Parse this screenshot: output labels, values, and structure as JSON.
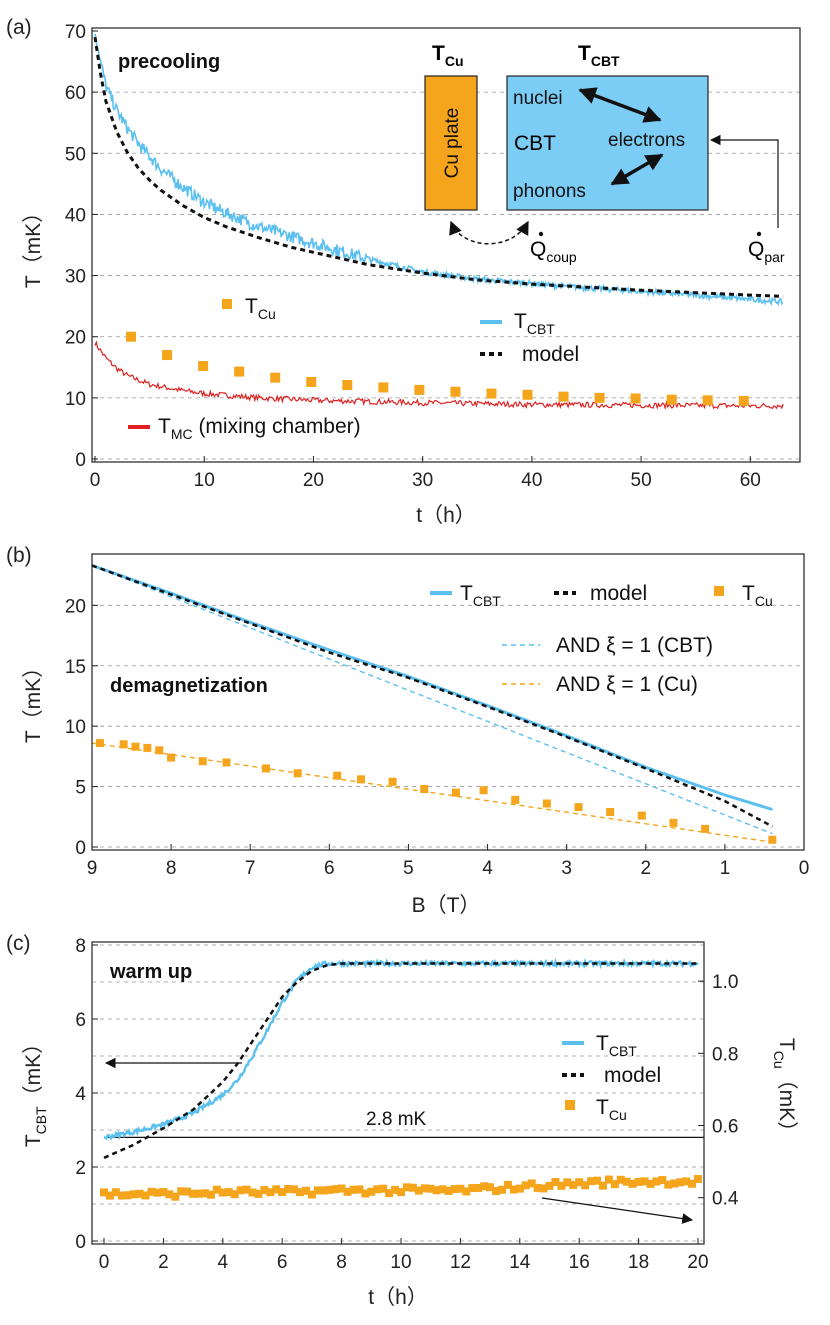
{
  "colors": {
    "cbt": "#5bc0f0",
    "model": "#111111",
    "cu": "#f5a51c",
    "mc": "#e02020",
    "grid": "#999999",
    "cbt_box": "#7ccdf5"
  },
  "panels": {
    "a": {
      "label": "(a)",
      "xlabel": "t（h）",
      "ylabel": "T（mK）",
      "annotation": "precooling",
      "xticks": [
        "0",
        "10",
        "20",
        "30",
        "40",
        "50",
        "60"
      ],
      "yticks": [
        "0",
        "10",
        "20",
        "30",
        "40",
        "50",
        "60",
        "70"
      ],
      "legend": {
        "tcu_main": "T",
        "tcu_sub": "Cu",
        "tcbt_main": "T",
        "tcbt_sub": "CBT",
        "model": "model",
        "tmc_main": "T",
        "tmc_sub": "MC",
        "tmc_rest": " (mixing chamber)"
      }
    },
    "b": {
      "label": "(b)",
      "xlabel": "B（T）",
      "ylabel": "T（mK）",
      "annotation": "demagnetization",
      "xticks": [
        "9",
        "8",
        "7",
        "6",
        "5",
        "4",
        "3",
        "2",
        "1",
        "0"
      ],
      "yticks": [
        "0",
        "5",
        "10",
        "15",
        "20"
      ],
      "legend": {
        "tcbt_main": "T",
        "tcbt_sub": "CBT",
        "model": "model",
        "tcu_main": "T",
        "tcu_sub": "Cu",
        "and_cbt": "AND ξ = 1 (CBT)",
        "and_cu": "AND ξ = 1 (Cu)"
      }
    },
    "c": {
      "label": "(c)",
      "xlabel": "t（h）",
      "ylabel_main": "T",
      "ylabel_sub": "CBT",
      "ylabel_rest": "（mK）",
      "ylabel2_main": "T",
      "ylabel2_sub": "Cu",
      "ylabel2_rest": "（mK）",
      "annotation": "warm up",
      "xticks": [
        "0",
        "2",
        "4",
        "6",
        "8",
        "10",
        "12",
        "14",
        "16",
        "18",
        "20"
      ],
      "yticks": [
        "0",
        "2",
        "4",
        "6",
        "8"
      ],
      "y2ticks": [
        "0.4",
        "0.6",
        "0.8",
        "1.0"
      ],
      "ref_label": "2.8 mK",
      "legend": {
        "tcbt_main": "T",
        "tcbt_sub": "CBT",
        "model": "model",
        "tcu_main": "T",
        "tcu_sub": "Cu"
      }
    }
  },
  "diagram": {
    "tcu_title_main": "T",
    "tcu_title_sub": "Cu",
    "tcbt_title_main": "T",
    "tcbt_title_sub": "CBT",
    "cu_plate": "Cu plate",
    "nuclei": "nuclei",
    "cbt": "CBT",
    "electrons": "electrons",
    "phonons": "phonons",
    "qcoup_main": "Q",
    "qcoup_sub": "coup",
    "qpar_main": "Q",
    "qpar_sub": "par"
  },
  "chart_data": [
    {
      "type": "line",
      "title": "",
      "xlabel": "t（h）",
      "ylabel": "T（mK）",
      "xlim": [
        0,
        64
      ],
      "ylim": [
        0,
        70
      ],
      "grid": "horizontal dashed",
      "series": [
        {
          "name": "T_CBT",
          "style": "noisy line",
          "x": [
            0,
            0.5,
            1,
            2,
            3,
            4,
            5,
            6,
            8,
            10,
            12,
            15,
            18,
            20,
            25,
            30,
            35,
            40,
            45,
            50,
            55,
            60,
            63
          ],
          "values": [
            70,
            65,
            61,
            57,
            54,
            51.5,
            49.5,
            47.5,
            44.5,
            42,
            40.2,
            38,
            36.4,
            35.3,
            32.7,
            30.6,
            29.4,
            28.7,
            28,
            27.4,
            26.8,
            26.1,
            25.7
          ]
        },
        {
          "name": "model",
          "style": "dashed",
          "x": [
            0,
            0.5,
            1,
            2,
            3,
            4,
            5,
            6,
            8,
            10,
            12,
            15,
            18,
            20,
            25,
            30,
            35,
            40,
            45,
            50,
            55,
            60,
            63
          ],
          "values": [
            69,
            63,
            58.5,
            53.5,
            50,
            47.5,
            45.6,
            44,
            41.5,
            39.5,
            38,
            36.2,
            34.6,
            33.8,
            31.8,
            30.4,
            29.3,
            28.6,
            28.1,
            27.6,
            27.2,
            26.8,
            26.6
          ]
        },
        {
          "name": "T_Cu",
          "style": "markers",
          "x": [
            3.3,
            6.6,
            9.9,
            13.2,
            16.5,
            19.8,
            23.1,
            26.4,
            29.7,
            33,
            36.3,
            39.6,
            42.9,
            46.2,
            49.5,
            52.8,
            56.1,
            59.4
          ],
          "values": [
            20,
            17,
            15.2,
            14.3,
            13.3,
            12.6,
            12.1,
            11.7,
            11.3,
            11,
            10.7,
            10.5,
            10.2,
            10,
            9.9,
            9.7,
            9.6,
            9.5
          ]
        },
        {
          "name": "T_MC",
          "style": "noisy line",
          "x": [
            0,
            1,
            2,
            3,
            5,
            8,
            10,
            15,
            20,
            30,
            40,
            50,
            60,
            63
          ],
          "values": [
            19,
            16.5,
            14.8,
            13.6,
            12.2,
            11.2,
            10.7,
            10,
            9.6,
            9.2,
            8.9,
            8.8,
            8.7,
            8.7
          ]
        }
      ]
    },
    {
      "type": "line",
      "title": "",
      "xlabel": "B（T）",
      "ylabel": "T（mK）",
      "xlim": [
        9,
        0
      ],
      "ylim": [
        0,
        24
      ],
      "grid": "horizontal dashed",
      "series": [
        {
          "name": "T_CBT",
          "x": [
            9,
            8,
            7,
            6,
            5,
            4,
            3,
            2,
            1,
            0.4
          ],
          "values": [
            23.3,
            21,
            18.6,
            16.3,
            14.1,
            11.7,
            9.2,
            6.6,
            4.3,
            3.1
          ]
        },
        {
          "name": "model",
          "x": [
            9,
            8,
            7,
            6,
            5,
            4,
            3,
            2,
            1,
            0.4
          ],
          "values": [
            23.3,
            20.9,
            18.5,
            16.1,
            14,
            11.6,
            9.1,
            6.5,
            3.8,
            1.7
          ]
        },
        {
          "name": "AND ξ = 1 (CBT)",
          "x": [
            9,
            0.4
          ],
          "values": [
            23.3,
            1.1
          ]
        },
        {
          "name": "AND ξ = 1 (Cu)",
          "x": [
            9,
            0.4
          ],
          "values": [
            8.6,
            0.4
          ]
        },
        {
          "name": "T_Cu",
          "x": [
            8.9,
            8.6,
            8.45,
            8.3,
            8.15,
            8,
            7.6,
            7.3,
            6.8,
            6.4,
            5.9,
            5.6,
            5.2,
            4.8,
            4.4,
            4.05,
            3.65,
            3.25,
            2.85,
            2.45,
            2.05,
            1.65,
            1.25,
            0.4
          ],
          "values": [
            8.6,
            8.5,
            8.3,
            8.2,
            8,
            7.4,
            7.1,
            7,
            6.5,
            6.1,
            5.9,
            5.6,
            5.4,
            4.8,
            4.5,
            4.7,
            3.9,
            3.6,
            3.3,
            2.9,
            2.6,
            2,
            1.5,
            0.6
          ]
        }
      ]
    },
    {
      "type": "line",
      "title": "",
      "xlabel": "t（h）",
      "ylabel": "T_CBT（mK）",
      "ylabel2": "T_Cu（mK）",
      "xlim": [
        0,
        20
      ],
      "ylim": [
        0,
        8
      ],
      "y2lim": [
        0.28,
        1.1
      ],
      "grid": "horizontal dashed",
      "reference_line": {
        "y": 2.8,
        "label": "2.8 mK"
      },
      "series": [
        {
          "name": "T_CBT",
          "axis": "left",
          "x": [
            0,
            1,
            2,
            3,
            4,
            4.5,
            5,
            5.5,
            6,
            6.5,
            7,
            7.5,
            8,
            9,
            10,
            12,
            14,
            16,
            18,
            20
          ],
          "values": [
            2.8,
            2.95,
            3.15,
            3.45,
            3.95,
            4.35,
            5,
            5.7,
            6.45,
            7.05,
            7.4,
            7.5,
            7.5,
            7.5,
            7.5,
            7.5,
            7.5,
            7.5,
            7.5,
            7.5
          ]
        },
        {
          "name": "model",
          "axis": "left",
          "x": [
            0,
            1,
            2,
            3,
            4,
            4.5,
            5,
            5.5,
            6,
            6.5,
            7,
            7.5,
            8,
            8.5,
            9,
            10,
            12,
            14,
            16,
            18,
            20
          ],
          "values": [
            2.25,
            2.6,
            3.05,
            3.55,
            4.3,
            4.8,
            5.4,
            6,
            6.6,
            7,
            7.3,
            7.45,
            7.5,
            7.5,
            7.5,
            7.5,
            7.5,
            7.5,
            7.5,
            7.5,
            7.5
          ]
        },
        {
          "name": "T_Cu",
          "axis": "right",
          "x": [
            0,
            2,
            4,
            6,
            8,
            10,
            12,
            14,
            16,
            18,
            20
          ],
          "values": [
            0.41,
            0.41,
            0.415,
            0.415,
            0.42,
            0.42,
            0.42,
            0.43,
            0.44,
            0.445,
            0.445
          ]
        }
      ]
    }
  ]
}
